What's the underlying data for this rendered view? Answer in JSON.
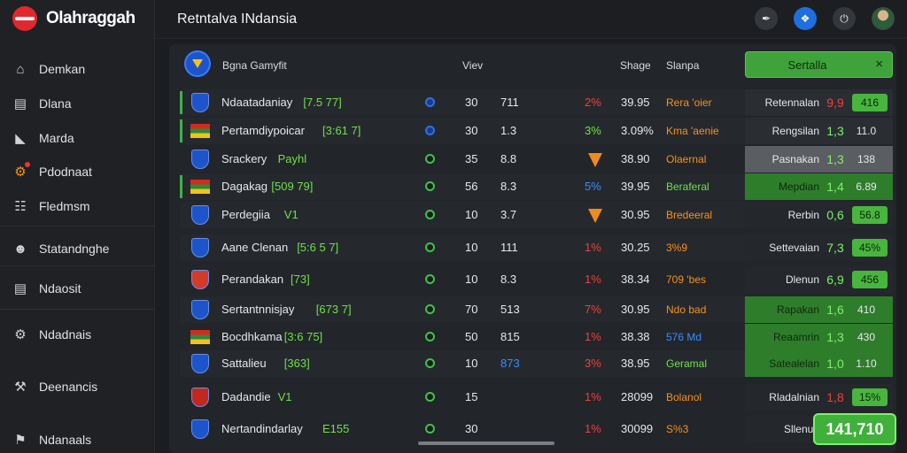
{
  "app": {
    "brand": "Olahraggah",
    "title": "Retntalva INdansia"
  },
  "sidebar": {
    "items": [
      {
        "label": "Demkan",
        "icon": "home-icon"
      },
      {
        "label": "Dlana",
        "icon": "document-icon"
      },
      {
        "label": "Marda",
        "icon": "image-icon"
      },
      {
        "label": "Pdodnaat",
        "icon": "alert-icon"
      },
      {
        "label": "Fledmsm",
        "icon": "bookmark-icon"
      },
      {
        "label": "Statandnghe",
        "icon": "user-icon"
      },
      {
        "label": "Ndaosit",
        "icon": "clipboard-icon"
      },
      {
        "label": "Ndadnais",
        "icon": "settings-icon"
      },
      {
        "label": "Deenancis",
        "icon": "tools-icon"
      },
      {
        "label": "Ndanaals",
        "icon": "flag-icon"
      }
    ]
  },
  "topbar": {
    "icons": [
      "edit-icon",
      "puzzle-icon",
      "power-icon",
      "user-avatar"
    ]
  },
  "table": {
    "header": {
      "team": "Bgna Gamyfit",
      "col_view": "Viev",
      "col_shape": "Shage",
      "col_status": "Slanpa"
    },
    "filter": {
      "label": "Sertalla",
      "close": "×"
    },
    "rows": [
      {
        "team": "Ndaatadaniay",
        "tag": "[7.5 77]",
        "c1": "30",
        "c2": "711",
        "pct": "2%",
        "val": "39.95",
        "status": "Rera 'oier",
        "side_name": "Retennalan",
        "side_odd": "9,9",
        "side_pill": "416"
      },
      {
        "team": "Pertamdiypoicar",
        "tag": "[3:61 7]",
        "c1": "30",
        "c2": "1.3",
        "pct": "3%",
        "val": "3.09%",
        "status": "Kma 'aenie",
        "side_name": "Rengsilan",
        "side_odd": "1,3",
        "side_pill": "11.0"
      },
      {
        "team": "Srackery",
        "tag": "Payhl",
        "c1": "35",
        "c2": "8.8",
        "pct": "",
        "val": "38.90",
        "status": "Olaernal",
        "side_name": "Pasnakan",
        "side_odd": "1,3",
        "side_pill": "138"
      },
      {
        "team": "Dagakag",
        "tag": "[509 79]",
        "c1": "56",
        "c2": "8.3",
        "pct": "5%",
        "val": "39.95",
        "status": "Beraferal",
        "side_name": "Mepdian",
        "side_odd": "1,4",
        "side_pill": "6.89"
      },
      {
        "team": "Perdegiia",
        "tag": "V1",
        "c1": "10",
        "c2": "3.7",
        "pct": "",
        "val": "30.95",
        "status": "Bredeeral",
        "side_name": "Rerbin",
        "side_odd": "0,6",
        "side_pill": "56.8"
      },
      {
        "team": "Aane Clenan",
        "tag": "[5:6 5 7]",
        "c1": "10",
        "c2": "111",
        "pct": "1%",
        "val": "30.25",
        "status": "3%9",
        "side_name": "Settevaian",
        "side_odd": "7,3",
        "side_pill": "45%"
      },
      {
        "team": "Perandakan",
        "tag": "[73]",
        "c1": "10",
        "c2": "8.3",
        "pct": "1%",
        "val": "38.34",
        "status": "709 'bes",
        "side_name": "Dlenun",
        "side_odd": "6,9",
        "side_pill": "456"
      },
      {
        "team": "Sertantnnisjay",
        "tag": "[673 7]",
        "c1": "70",
        "c2": "513",
        "pct": "7%",
        "val": "30.95",
        "status": "Ndo bad",
        "side_name": "Rapakan",
        "side_odd": "1,6",
        "side_pill": "410"
      },
      {
        "team": "Bocdhkama",
        "tag": "[3:6 75]",
        "c1": "50",
        "c2": "815",
        "pct": "1%",
        "val": "38.38",
        "status": "576 Md",
        "side_name": "Reaamrin",
        "side_odd": "1,3",
        "side_pill": "430"
      },
      {
        "team": "Sattalieu",
        "tag": "[363]",
        "c1": "10",
        "c2": "873",
        "pct": "3%",
        "val": "38.95",
        "status": "Geramal",
        "side_name": "Satealelan",
        "side_odd": "1,0",
        "side_pill": "1.10"
      },
      {
        "team": "Dadandie",
        "tag": "V1",
        "c1": "15",
        "c2": "",
        "pct": "1%",
        "val": "28099",
        "status": "Bolanol",
        "side_name": "Rladalnian",
        "side_odd": "1,8",
        "side_pill": "15%"
      },
      {
        "team": "Nertandindarlay",
        "tag": "E155",
        "c1": "30",
        "c2": "",
        "pct": "1%",
        "val": "30099",
        "status": "S%3",
        "side_name": "Sllenue",
        "side_odd": "",
        "side_pill": ""
      }
    ],
    "total_button": "141,710"
  },
  "colors": {
    "accent_green": "#3fb13a",
    "orange": "#f6911e",
    "red": "#f0403a",
    "blue": "#3a8cff",
    "lime": "#6fe04a"
  }
}
